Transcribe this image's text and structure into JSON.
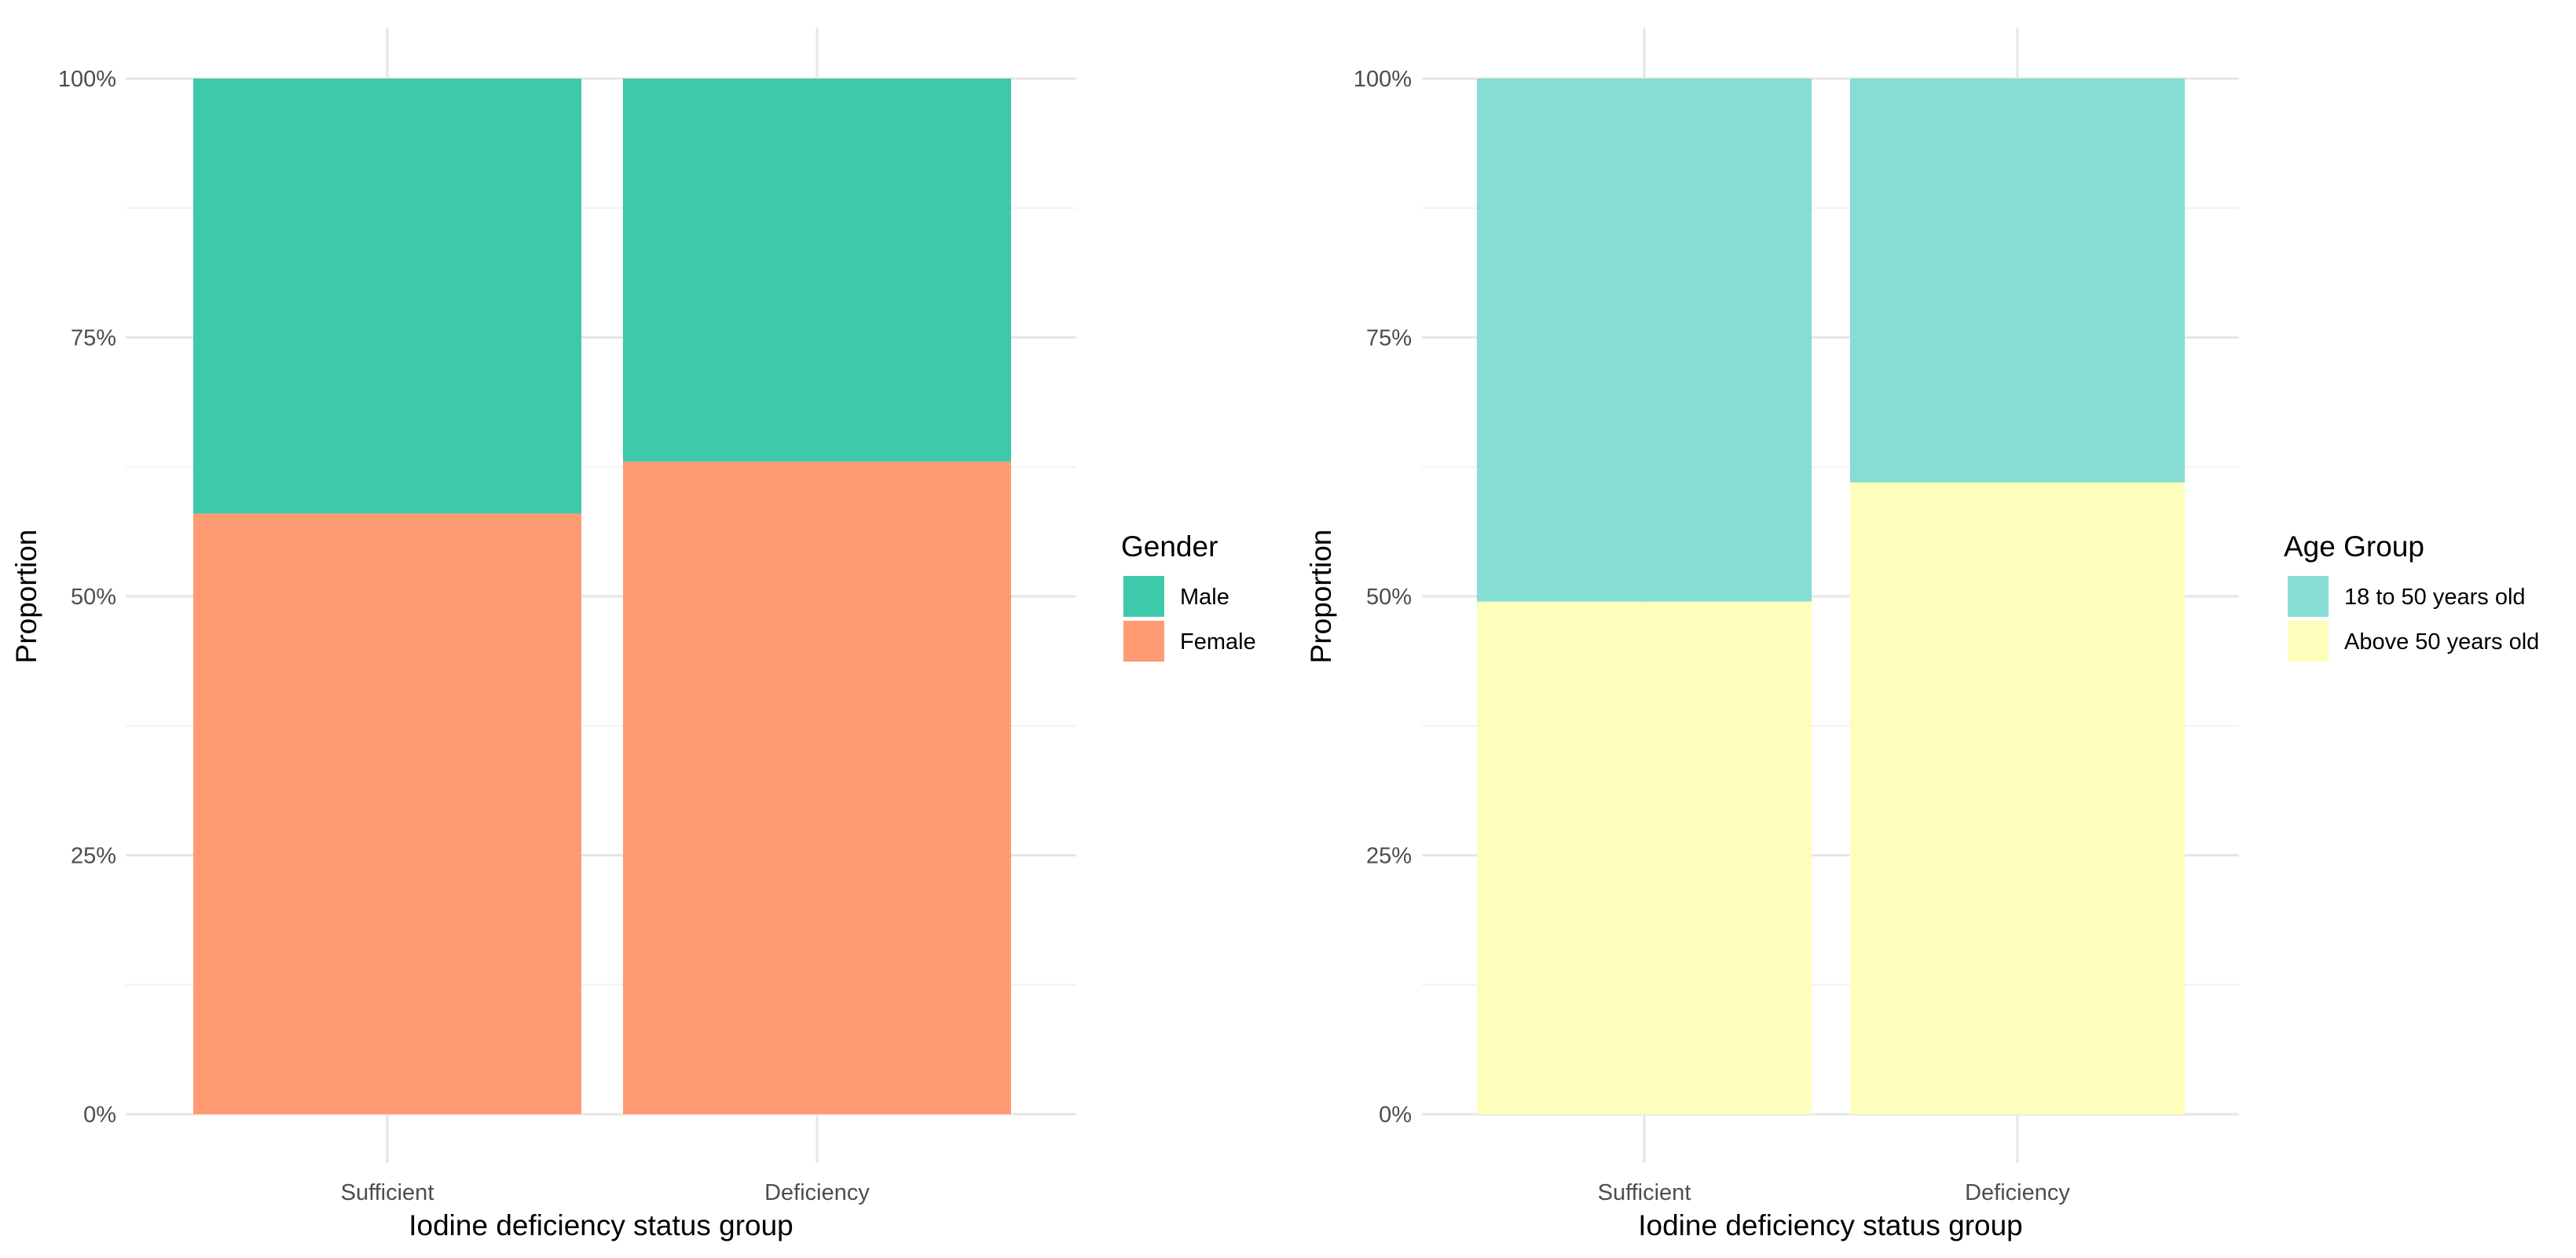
{
  "chart_data": [
    {
      "type": "bar",
      "stacked": "proportion",
      "categories": [
        "Sufficient",
        "Deficiency"
      ],
      "series": [
        {
          "name": "Male",
          "values": [
            0.42,
            0.37
          ],
          "color": "#3ec9aa"
        },
        {
          "name": "Female",
          "values": [
            0.58,
            0.63
          ],
          "color": "#fe9b73"
        }
      ],
      "yticks": [
        "0%",
        "25%",
        "50%",
        "75%",
        "100%"
      ],
      "ylim": [
        0,
        1
      ],
      "xlabel": "Iodine deficiency status group",
      "ylabel": "Proportion",
      "legend": {
        "title": "Gender",
        "position": "right"
      },
      "grid": true
    },
    {
      "type": "bar",
      "stacked": "proportion",
      "categories": [
        "Sufficient",
        "Deficiency"
      ],
      "series": [
        {
          "name": "18 to 50 years old",
          "values": [
            0.505,
            0.39
          ],
          "color": "#85ddd3"
        },
        {
          "name": "Above 50 years old",
          "values": [
            0.495,
            0.61
          ],
          "color": "#fefebc"
        }
      ],
      "yticks": [
        "0%",
        "25%",
        "50%",
        "75%",
        "100%"
      ],
      "ylim": [
        0,
        1
      ],
      "xlabel": "Iodine deficiency status group",
      "ylabel": "Proportion",
      "legend": {
        "title": "Age Group",
        "position": "right"
      },
      "grid": true
    }
  ]
}
